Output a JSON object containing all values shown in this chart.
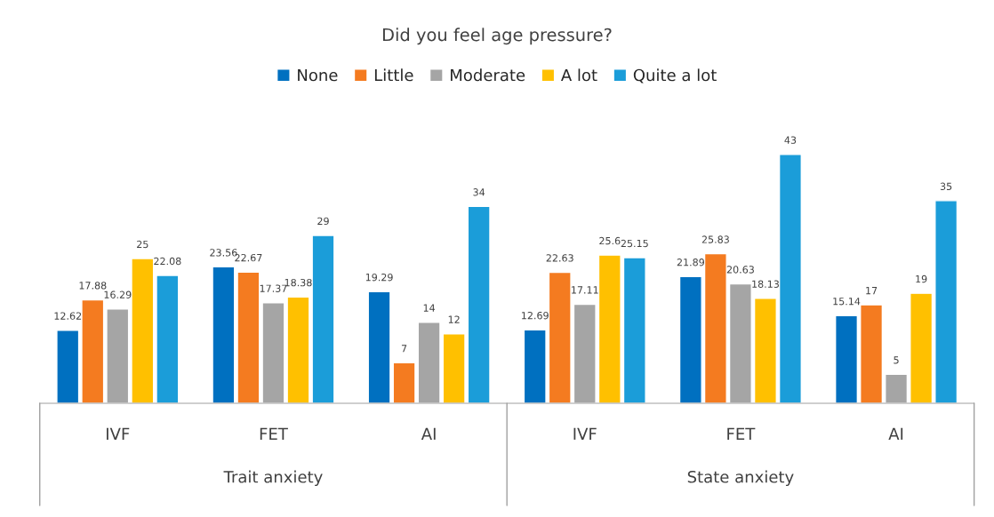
{
  "chart_data": {
    "type": "bar",
    "title": "Did you feel age pressure?",
    "categories": [
      "IVF",
      "FET",
      "AI",
      "IVF",
      "FET",
      "AI"
    ],
    "series": [
      {
        "name": "None",
        "color": "#0070c0",
        "values": [
          12.62,
          23.56,
          19.29,
          12.69,
          21.89,
          15.14
        ]
      },
      {
        "name": "Little",
        "color": "#f47b20",
        "values": [
          17.88,
          22.67,
          7,
          22.63,
          25.83,
          17
        ]
      },
      {
        "name": "Moderate",
        "color": "#a5a5a5",
        "values": [
          16.29,
          17.37,
          14,
          17.11,
          20.63,
          5
        ]
      },
      {
        "name": "A lot",
        "color": "#ffc000",
        "values": [
          25,
          18.38,
          12,
          25.6,
          18.13,
          19
        ]
      },
      {
        "name": "Quite a lot",
        "color": "#1b9dd9",
        "values": [
          22.08,
          29,
          34,
          25.15,
          43,
          35
        ]
      }
    ],
    "annotations": [
      "Trait anxiety",
      "State anxiety"
    ],
    "data_labels": true,
    "legend": "top"
  }
}
